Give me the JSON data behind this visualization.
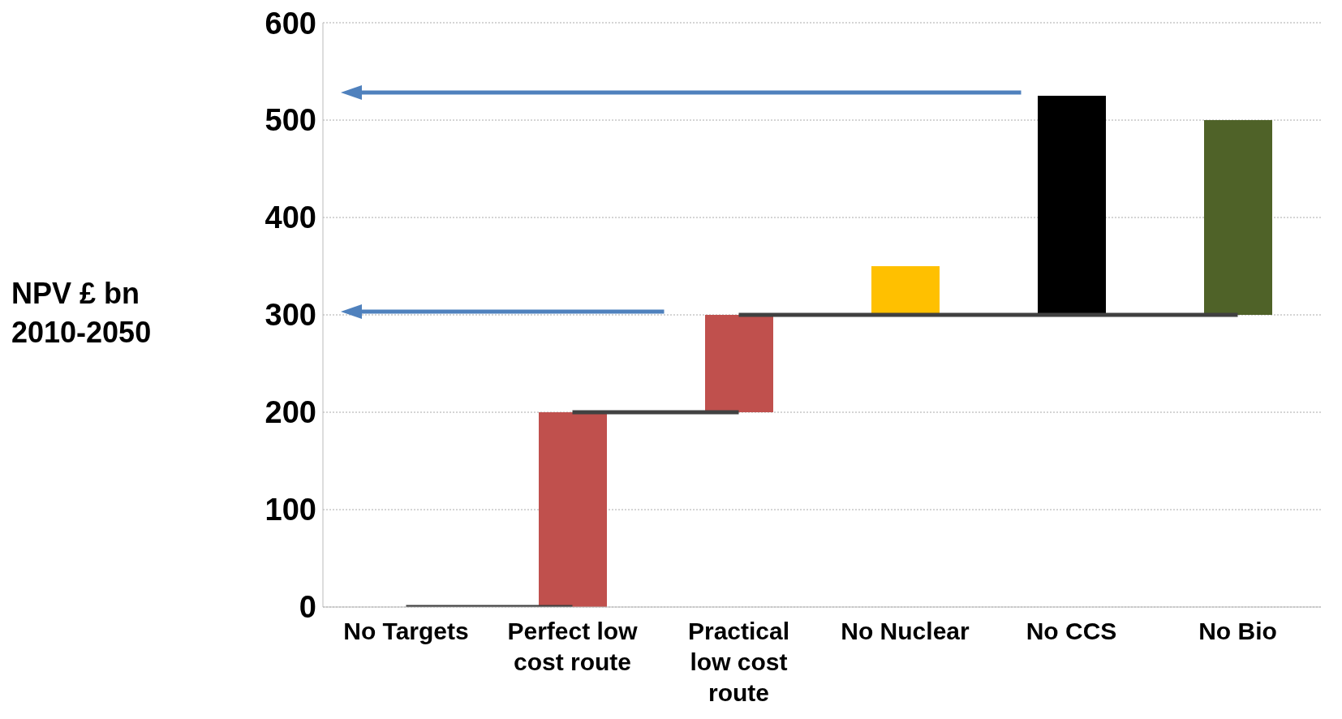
{
  "chart_data": {
    "type": "bar",
    "ylabel": "NPV £ bn 2010-2050",
    "categories": [
      "No Targets",
      "Perfect low cost route",
      "Practical low cost route",
      "No Nuclear",
      "No CCS",
      "No Bio"
    ],
    "series": [
      {
        "values": [
          null,
          200,
          100,
          50,
          225,
          200
        ],
        "base": [
          null,
          0,
          200,
          300,
          300,
          300
        ],
        "colors": [
          null,
          "#c0504d",
          "#c0504d",
          "#ffc000",
          "#000000",
          "#4f6228"
        ]
      },
      {
        "type": "line",
        "color": "#3f3f3f",
        "values": [
          0,
          0,
          null,
          null,
          null,
          null
        ]
      },
      {
        "type": "line",
        "color": "#414141",
        "values": [
          null,
          200,
          200,
          null,
          null,
          null
        ]
      },
      {
        "type": "line",
        "color": "#404040",
        "values": [
          null,
          null,
          300,
          300,
          300,
          300
        ]
      }
    ],
    "ylim": [
      0,
      600
    ],
    "yticks": [
      0,
      100,
      200,
      300,
      400,
      500,
      600
    ],
    "grid": "y",
    "legend": false,
    "marker": "none"
  }
}
